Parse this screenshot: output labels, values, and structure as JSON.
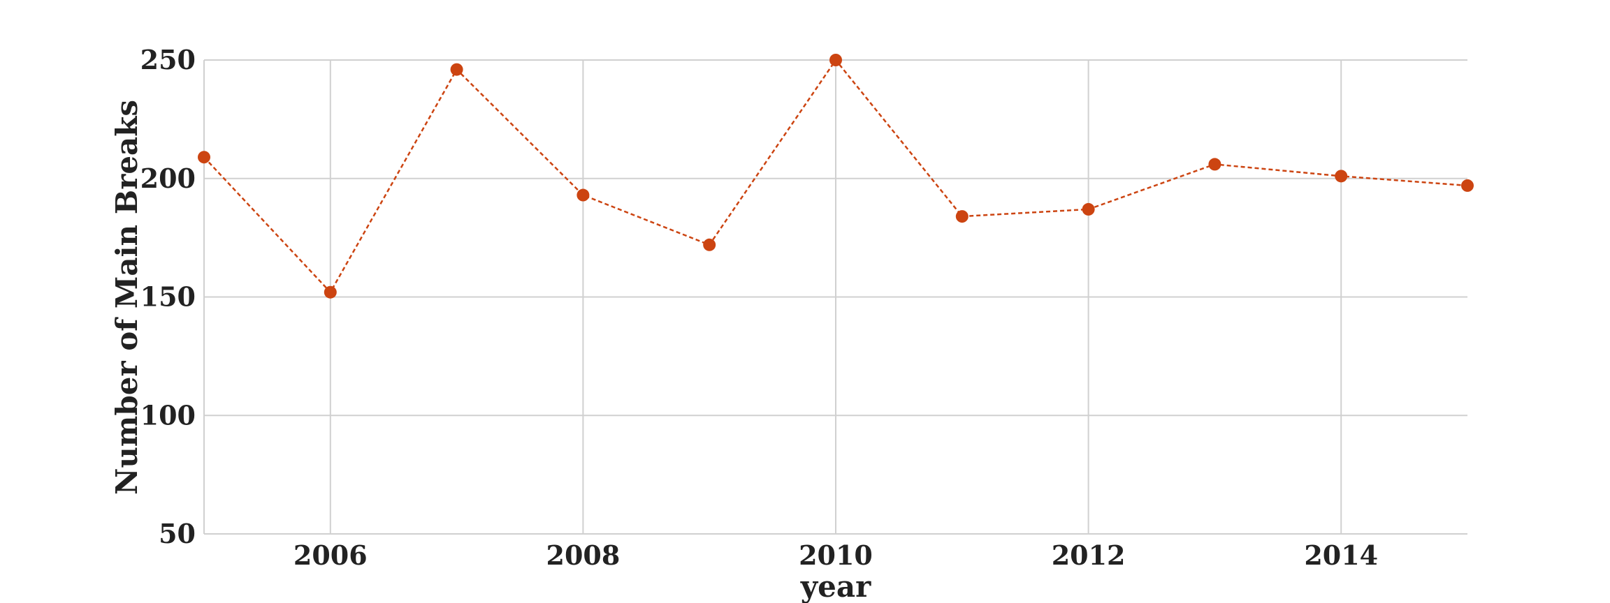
{
  "chart_data": {
    "type": "line",
    "x_label": "year",
    "y_label": "Number of Main Breaks",
    "x": [
      2005,
      2006,
      2007,
      2008,
      2009,
      2010,
      2011,
      2012,
      2013,
      2014,
      2015
    ],
    "series": [
      {
        "name": "Main Breaks",
        "color": "#cc4411",
        "values": [
          209,
          152,
          246,
          193,
          172,
          250,
          184,
          187,
          206,
          201,
          197
        ]
      }
    ],
    "xlim": [
      2005,
      2015
    ],
    "xticks": [
      2006,
      2008,
      2010,
      2012,
      2014
    ],
    "ylim": [
      50,
      250
    ],
    "yticks": [
      50,
      100,
      150,
      200,
      250
    ],
    "grid": true,
    "line_style": "dashed",
    "markers": true
  }
}
